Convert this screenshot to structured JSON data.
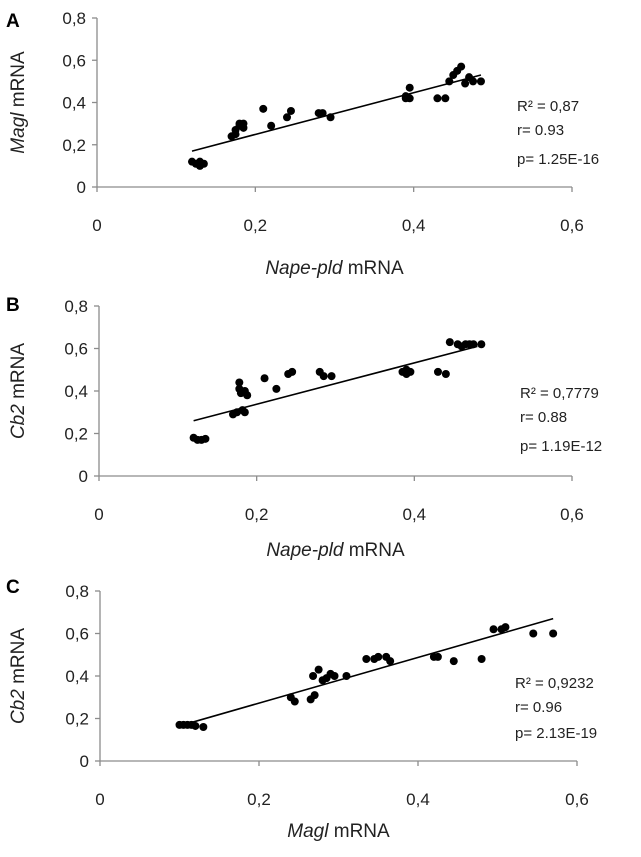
{
  "chart_data": [
    {
      "type": "scatter",
      "panel": "A",
      "xlabel": "Nape-pld mRNA",
      "xlabel_italic": "Nape-pld",
      "xlabel_plain": " mRNA",
      "ylabel": "Magl mRNA",
      "ylabel_italic": "Magl",
      "ylabel_plain": " mRNA",
      "xlim": [
        0,
        0.6
      ],
      "ylim": [
        0,
        0.8
      ],
      "xticks": [
        "0",
        "0,2",
        "0,4",
        "0,6"
      ],
      "yticks": [
        "0",
        "0,2",
        "0,4",
        "0,6",
        "0,8"
      ],
      "grid": false,
      "stats": [
        "R² = 0,87",
        "r= 0.93",
        "p= 1.25E-16"
      ],
      "trendline": {
        "x": [
          0.12,
          0.485
        ],
        "y": [
          0.17,
          0.53
        ]
      },
      "points": [
        {
          "x": 0.12,
          "y": 0.12
        },
        {
          "x": 0.125,
          "y": 0.11
        },
        {
          "x": 0.13,
          "y": 0.1
        },
        {
          "x": 0.13,
          "y": 0.12
        },
        {
          "x": 0.135,
          "y": 0.11
        },
        {
          "x": 0.17,
          "y": 0.24
        },
        {
          "x": 0.175,
          "y": 0.25
        },
        {
          "x": 0.175,
          "y": 0.27
        },
        {
          "x": 0.18,
          "y": 0.29
        },
        {
          "x": 0.18,
          "y": 0.3
        },
        {
          "x": 0.185,
          "y": 0.28
        },
        {
          "x": 0.185,
          "y": 0.3
        },
        {
          "x": 0.21,
          "y": 0.37
        },
        {
          "x": 0.22,
          "y": 0.29
        },
        {
          "x": 0.24,
          "y": 0.33
        },
        {
          "x": 0.245,
          "y": 0.36
        },
        {
          "x": 0.28,
          "y": 0.35
        },
        {
          "x": 0.285,
          "y": 0.35
        },
        {
          "x": 0.295,
          "y": 0.33
        },
        {
          "x": 0.39,
          "y": 0.42
        },
        {
          "x": 0.39,
          "y": 0.43
        },
        {
          "x": 0.395,
          "y": 0.42
        },
        {
          "x": 0.395,
          "y": 0.47
        },
        {
          "x": 0.43,
          "y": 0.42
        },
        {
          "x": 0.44,
          "y": 0.42
        },
        {
          "x": 0.445,
          "y": 0.5
        },
        {
          "x": 0.45,
          "y": 0.53
        },
        {
          "x": 0.455,
          "y": 0.55
        },
        {
          "x": 0.46,
          "y": 0.57
        },
        {
          "x": 0.465,
          "y": 0.49
        },
        {
          "x": 0.47,
          "y": 0.52
        },
        {
          "x": 0.475,
          "y": 0.5
        },
        {
          "x": 0.485,
          "y": 0.5
        }
      ]
    },
    {
      "type": "scatter",
      "panel": "B",
      "xlabel": "Nape-pld mRNA",
      "xlabel_italic": "Nape-pld",
      "xlabel_plain": " mRNA",
      "ylabel": "Cb2 mRNA",
      "ylabel_italic": "Cb2",
      "ylabel_plain": " mRNA",
      "xlim": [
        0,
        0.6
      ],
      "ylim": [
        0,
        0.8
      ],
      "xticks": [
        "0",
        "0,2",
        "0,4",
        "0,6"
      ],
      "yticks": [
        "0",
        "0,2",
        "0,4",
        "0,6",
        "0,8"
      ],
      "grid": false,
      "stats": [
        "R² = 0,7779",
        "r= 0.88",
        "p= 1.19E-12"
      ],
      "trendline": {
        "x": [
          0.12,
          0.48
        ],
        "y": [
          0.26,
          0.61
        ]
      },
      "points": [
        {
          "x": 0.12,
          "y": 0.18
        },
        {
          "x": 0.125,
          "y": 0.17
        },
        {
          "x": 0.13,
          "y": 0.17
        },
        {
          "x": 0.135,
          "y": 0.175
        },
        {
          "x": 0.17,
          "y": 0.29
        },
        {
          "x": 0.175,
          "y": 0.3
        },
        {
          "x": 0.178,
          "y": 0.44
        },
        {
          "x": 0.178,
          "y": 0.41
        },
        {
          "x": 0.18,
          "y": 0.39
        },
        {
          "x": 0.182,
          "y": 0.31
        },
        {
          "x": 0.185,
          "y": 0.3
        },
        {
          "x": 0.185,
          "y": 0.4
        },
        {
          "x": 0.188,
          "y": 0.38
        },
        {
          "x": 0.21,
          "y": 0.46
        },
        {
          "x": 0.225,
          "y": 0.41
        },
        {
          "x": 0.24,
          "y": 0.48
        },
        {
          "x": 0.245,
          "y": 0.49
        },
        {
          "x": 0.28,
          "y": 0.49
        },
        {
          "x": 0.285,
          "y": 0.47
        },
        {
          "x": 0.295,
          "y": 0.47
        },
        {
          "x": 0.385,
          "y": 0.49
        },
        {
          "x": 0.39,
          "y": 0.48
        },
        {
          "x": 0.39,
          "y": 0.5
        },
        {
          "x": 0.395,
          "y": 0.49
        },
        {
          "x": 0.43,
          "y": 0.49
        },
        {
          "x": 0.44,
          "y": 0.48
        },
        {
          "x": 0.445,
          "y": 0.63
        },
        {
          "x": 0.455,
          "y": 0.62
        },
        {
          "x": 0.46,
          "y": 0.61
        },
        {
          "x": 0.465,
          "y": 0.62
        },
        {
          "x": 0.47,
          "y": 0.62
        },
        {
          "x": 0.475,
          "y": 0.62
        },
        {
          "x": 0.485,
          "y": 0.62
        }
      ]
    },
    {
      "type": "scatter",
      "panel": "C",
      "xlabel": "Magl mRNA",
      "xlabel_italic": "Magl",
      "xlabel_plain": " mRNA",
      "ylabel": "Cb2 mRNA",
      "ylabel_italic": "Cb2",
      "ylabel_plain": " mRNA",
      "xlim": [
        0,
        0.6
      ],
      "ylim": [
        0,
        0.8
      ],
      "xticks": [
        "0",
        "0,2",
        "0,4",
        "0,6"
      ],
      "yticks": [
        "0",
        "0,2",
        "0,4",
        "0,6",
        "0,8"
      ],
      "grid": false,
      "stats": [
        "R² = 0,9232",
        "r= 0.96",
        "p= 2.13E-19"
      ],
      "trendline": {
        "x": [
          0.1,
          0.57
        ],
        "y": [
          0.165,
          0.67
        ]
      },
      "points": [
        {
          "x": 0.1,
          "y": 0.17
        },
        {
          "x": 0.105,
          "y": 0.17
        },
        {
          "x": 0.11,
          "y": 0.17
        },
        {
          "x": 0.115,
          "y": 0.17
        },
        {
          "x": 0.12,
          "y": 0.165
        },
        {
          "x": 0.13,
          "y": 0.16
        },
        {
          "x": 0.24,
          "y": 0.3
        },
        {
          "x": 0.245,
          "y": 0.28
        },
        {
          "x": 0.265,
          "y": 0.29
        },
        {
          "x": 0.268,
          "y": 0.4
        },
        {
          "x": 0.27,
          "y": 0.31
        },
        {
          "x": 0.275,
          "y": 0.43
        },
        {
          "x": 0.28,
          "y": 0.38
        },
        {
          "x": 0.285,
          "y": 0.39
        },
        {
          "x": 0.29,
          "y": 0.41
        },
        {
          "x": 0.295,
          "y": 0.4
        },
        {
          "x": 0.31,
          "y": 0.4
        },
        {
          "x": 0.335,
          "y": 0.48
        },
        {
          "x": 0.345,
          "y": 0.48
        },
        {
          "x": 0.35,
          "y": 0.49
        },
        {
          "x": 0.36,
          "y": 0.49
        },
        {
          "x": 0.365,
          "y": 0.47
        },
        {
          "x": 0.42,
          "y": 0.49
        },
        {
          "x": 0.425,
          "y": 0.49
        },
        {
          "x": 0.445,
          "y": 0.47
        },
        {
          "x": 0.48,
          "y": 0.48
        },
        {
          "x": 0.495,
          "y": 0.62
        },
        {
          "x": 0.505,
          "y": 0.62
        },
        {
          "x": 0.51,
          "y": 0.63
        },
        {
          "x": 0.545,
          "y": 0.6
        },
        {
          "x": 0.57,
          "y": 0.6
        }
      ]
    }
  ]
}
